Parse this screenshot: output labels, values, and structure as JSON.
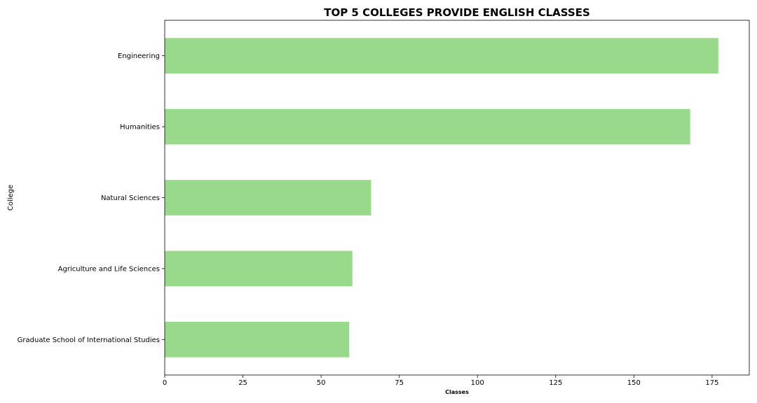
{
  "chart_data": {
    "type": "bar",
    "orientation": "horizontal",
    "title": "TOP 5 COLLEGES PROVIDE ENGLISH CLASSES",
    "xlabel": "Classes",
    "ylabel": "College",
    "categories": [
      "Engineering",
      "Humanities",
      "Natural Sciences",
      "Agriculture and Life Sciences",
      "Graduate School of International Studies"
    ],
    "values": [
      177,
      168,
      66,
      60,
      59
    ],
    "xlim": [
      0,
      186.9
    ],
    "xticks": [
      0,
      25,
      50,
      75,
      100,
      125,
      150,
      175
    ],
    "bar_color": "#98d98b",
    "grid": false
  }
}
